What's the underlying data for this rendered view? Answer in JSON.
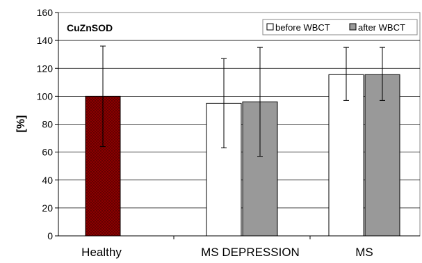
{
  "chart_data": {
    "type": "bar",
    "title": "CuZnSOD",
    "ylabel": "[%]",
    "xlabel": "",
    "ylim": [
      0,
      160
    ],
    "yticks": [
      0,
      20,
      40,
      60,
      80,
      100,
      120,
      140,
      160
    ],
    "grid": true,
    "legend_position": "top-right",
    "categories": [
      "Healthy",
      "MS DEPRESSION",
      "MS"
    ],
    "series": [
      {
        "name": "before WBCT",
        "color": "#ffffff",
        "values": [
          100,
          95,
          115.5
        ],
        "error_low": [
          64,
          63,
          97
        ],
        "error_high": [
          136,
          127,
          135
        ]
      },
      {
        "name": "after WBCT",
        "color": "#999999",
        "values": [
          null,
          96,
          115.5
        ],
        "error_low": [
          null,
          57,
          97
        ],
        "error_high": [
          null,
          135,
          135
        ]
      }
    ],
    "special_bars": [
      {
        "category": "Healthy",
        "fill": "#8b0000",
        "pattern": "dotted"
      }
    ]
  }
}
